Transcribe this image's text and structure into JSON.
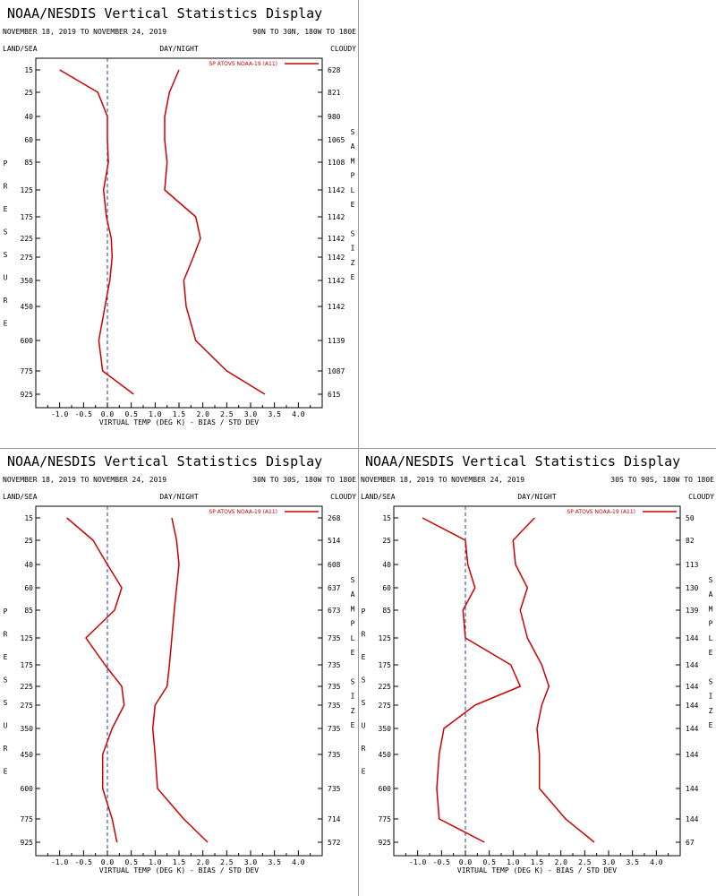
{
  "colors": {
    "series": "#cc0000",
    "zero_line": "#2b3a8a",
    "axis": "#000000",
    "divider": "#9a9a9a"
  },
  "common": {
    "title": "NOAA/NESDIS Vertical Statistics Display",
    "date_range": "NOVEMBER 18, 2019 TO NOVEMBER 24, 2019",
    "land_sea": "LAND/SEA",
    "day_night": "DAY/NIGHT",
    "cloudy": "CLOUDY",
    "pressure_label": "PRESSURE",
    "sample_label": "SAMPLE SIZE",
    "xlabel": "VIRTUAL TEMP (DEG K) - BIAS / STD DEV",
    "legend": "SP ATOVS NOAA-19 (A11)"
  },
  "chart_data": [
    {
      "type": "line",
      "region": "90N TO 30N, 180W TO 180E",
      "pressure_levels": [
        "15",
        "25",
        "40",
        "60",
        "85",
        "125",
        "175",
        "225",
        "275",
        "350",
        "450",
        "600",
        "775",
        "925"
      ],
      "xlim": [
        -1.5,
        4.5
      ],
      "xticks": [
        "-1.0",
        "-0.5",
        "0.0",
        "0.5",
        "1.0",
        "1.5",
        "2.0",
        "2.5",
        "3.0",
        "3.5",
        "4.0"
      ],
      "sample_size": [
        "628",
        "821",
        "980",
        "1065",
        "1108",
        "1142",
        "1142",
        "1142",
        "1142",
        "1142",
        "1142",
        "1139",
        "1087",
        "615"
      ],
      "series": [
        {
          "values": [
            -1.0,
            -0.2,
            0.0,
            0.0,
            0.02,
            -0.08,
            -0.02,
            0.08,
            0.1,
            0.05,
            -0.05,
            -0.18,
            -0.1,
            0.55
          ]
        },
        {
          "values": [
            1.5,
            1.3,
            1.2,
            1.2,
            1.25,
            1.2,
            1.85,
            1.95,
            1.8,
            1.6,
            1.65,
            1.85,
            2.5,
            3.3
          ]
        }
      ]
    },
    {
      "type": "line",
      "region": "30N TO 30S, 180W TO 180E",
      "pressure_levels": [
        "15",
        "25",
        "40",
        "60",
        "85",
        "125",
        "175",
        "225",
        "275",
        "350",
        "450",
        "600",
        "775",
        "925"
      ],
      "xlim": [
        -1.5,
        4.5
      ],
      "xticks": [
        "-1.0",
        "-0.5",
        "0.0",
        "0.5",
        "1.0",
        "1.5",
        "2.0",
        "2.5",
        "3.0",
        "3.5",
        "4.0"
      ],
      "sample_size": [
        "268",
        "514",
        "608",
        "637",
        "673",
        "735",
        "735",
        "735",
        "735",
        "735",
        "735",
        "735",
        "714",
        "572"
      ],
      "series": [
        {
          "values": [
            -0.85,
            -0.3,
            0.0,
            0.3,
            0.15,
            -0.45,
            -0.05,
            0.3,
            0.35,
            0.1,
            -0.1,
            -0.1,
            0.1,
            0.2
          ]
        },
        {
          "values": [
            1.35,
            1.45,
            1.5,
            1.45,
            1.4,
            1.35,
            1.3,
            1.25,
            1.0,
            0.95,
            1.0,
            1.05,
            1.6,
            2.1
          ]
        }
      ]
    },
    {
      "type": "line",
      "region": "30S TO 90S, 180W TO 180E",
      "pressure_levels": [
        "15",
        "25",
        "40",
        "60",
        "85",
        "125",
        "175",
        "225",
        "275",
        "350",
        "450",
        "600",
        "775",
        "925"
      ],
      "xlim": [
        -1.5,
        4.5
      ],
      "xticks": [
        "-1.0",
        "-0.5",
        "0.0",
        "0.5",
        "1.0",
        "1.5",
        "2.0",
        "2.5",
        "3.0",
        "3.5",
        "4.0"
      ],
      "sample_size": [
        "50",
        "82",
        "113",
        "130",
        "139",
        "144",
        "144",
        "144",
        "144",
        "144",
        "144",
        "144",
        "144",
        "67"
      ],
      "series": [
        {
          "values": [
            -0.9,
            0.0,
            0.05,
            0.2,
            -0.05,
            0.0,
            0.95,
            1.15,
            0.2,
            -0.45,
            -0.55,
            -0.6,
            -0.55,
            0.4
          ]
        },
        {
          "values": [
            1.45,
            1.0,
            1.05,
            1.3,
            1.15,
            1.3,
            1.6,
            1.75,
            1.6,
            1.5,
            1.55,
            1.55,
            2.1,
            2.7
          ]
        }
      ]
    }
  ]
}
